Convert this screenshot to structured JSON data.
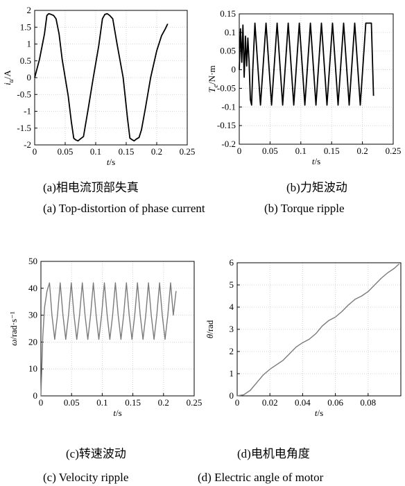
{
  "captions": {
    "a_zh": "(a)相电流顶部失真",
    "b_zh": "(b)力矩波动",
    "a_en": "(a) Top-distortion of phase current",
    "b_en": "(b) Torque ripple",
    "c_zh": "(c)转速波动",
    "d_zh": "(d)电机电角度",
    "c_en": "(c) Velocity ripple",
    "d_en": "(d) Electric angle of motor"
  },
  "chart_data": [
    {
      "id": "a",
      "type": "line",
      "title": "",
      "xlabel": "t/s",
      "ylabel": "i_u/A",
      "xlim": [
        0,
        0.25
      ],
      "ylim": [
        -2,
        2
      ],
      "xticks": [
        "0",
        "0.05",
        "0.1",
        "0.15",
        "0.2",
        "0.25"
      ],
      "yticks": [
        "2",
        "1.5",
        "1",
        "0.5",
        "0",
        "-0.5",
        "-1",
        "-1.5",
        "-2"
      ],
      "grid": true,
      "series": [
        {
          "color": "#000000",
          "x": [
            0,
            0.008,
            0.016,
            0.02,
            0.023,
            0.027,
            0.031,
            0.035,
            0.04,
            0.045,
            0.05,
            0.055,
            0.06,
            0.064,
            0.067,
            0.071,
            0.075,
            0.08,
            0.088,
            0.096,
            0.105,
            0.111,
            0.115,
            0.119,
            0.123,
            0.128,
            0.135,
            0.145,
            0.152,
            0.156,
            0.16,
            0.163,
            0.167,
            0.171,
            0.175,
            0.181,
            0.19,
            0.2,
            0.208,
            0.214,
            0.218
          ],
          "y": [
            0,
            0.55,
            1.3,
            1.85,
            1.9,
            1.88,
            1.85,
            1.75,
            1.3,
            0.55,
            0,
            -0.55,
            -1.3,
            -1.8,
            -1.85,
            -1.88,
            -1.82,
            -1.75,
            -0.9,
            0,
            0.95,
            1.75,
            1.88,
            1.9,
            1.85,
            1.75,
            1.0,
            0,
            -1.2,
            -1.8,
            -1.85,
            -1.88,
            -1.82,
            -1.78,
            -1.55,
            -0.95,
            0,
            0.8,
            1.25,
            1.45,
            1.6
          ]
        }
      ]
    },
    {
      "id": "b",
      "type": "line",
      "title": "",
      "xlabel": "t/s",
      "ylabel": "T_e/N·m",
      "xlim": [
        0,
        0.25
      ],
      "ylim": [
        -0.2,
        0.15
      ],
      "xticks": [
        "0",
        "0.05",
        "0.1",
        "0.15",
        "0.2",
        "0.25"
      ],
      "yticks": [
        "0.15",
        "0.1",
        "0.05",
        "0",
        "-0.05",
        "-0.1",
        "-0.15",
        "-0.2"
      ],
      "grid": true,
      "series": [
        {
          "color": "#000000",
          "x": [
            0,
            0.002,
            0.004,
            0.006,
            0.008,
            0.01,
            0.012,
            0.014,
            0.016,
            0.018,
            0.02,
            0.022,
            0.0255,
            0.0345,
            0.0435,
            0.0525,
            0.0615,
            0.0705,
            0.0795,
            0.0885,
            0.0975,
            0.1065,
            0.1155,
            0.1245,
            0.1335,
            0.1425,
            0.1515,
            0.1605,
            0.1695,
            0.1785,
            0.1875,
            0.1965,
            0.2055,
            0.2145,
            0.218
          ],
          "y": [
            0,
            0.11,
            0.02,
            0.12,
            -0.02,
            0.09,
            0.01,
            0.085,
            0.02,
            -0.08,
            -0.095,
            0.0,
            0.125,
            -0.095,
            0.125,
            -0.095,
            0.125,
            -0.095,
            0.125,
            -0.095,
            0.125,
            -0.095,
            0.125,
            -0.095,
            0.125,
            -0.095,
            0.125,
            -0.095,
            0.125,
            -0.095,
            0.125,
            -0.095,
            0.125,
            0.125,
            -0.07
          ]
        }
      ]
    },
    {
      "id": "c",
      "type": "line",
      "title": "",
      "xlabel": "t/s",
      "ylabel": "ω/rad·s⁻¹",
      "xlim": [
        0,
        0.25
      ],
      "ylim": [
        0,
        50
      ],
      "xticks": [
        "0",
        "0.05",
        "0.1",
        "0.15",
        "0.2",
        "0.25"
      ],
      "yticks": [
        "50",
        "40",
        "30",
        "20",
        "10",
        "0"
      ],
      "grid": true,
      "series": [
        {
          "color": "#7a7a7a",
          "x": [
            0,
            0.003,
            0.006,
            0.01,
            0.014,
            0.018,
            0.0225,
            0.027,
            0.0315,
            0.036,
            0.0405,
            0.045,
            0.0495,
            0.054,
            0.0585,
            0.063,
            0.0675,
            0.072,
            0.0765,
            0.081,
            0.0855,
            0.09,
            0.0945,
            0.099,
            0.1035,
            0.108,
            0.1125,
            0.117,
            0.1215,
            0.126,
            0.1305,
            0.135,
            0.1395,
            0.144,
            0.1485,
            0.153,
            0.1575,
            0.162,
            0.1665,
            0.171,
            0.1755,
            0.18,
            0.1845,
            0.189,
            0.1935,
            0.198,
            0.2025,
            0.207,
            0.2115,
            0.216,
            0.2205
          ],
          "y": [
            0,
            22,
            33,
            39,
            42,
            30,
            21,
            30,
            42,
            30,
            21,
            30,
            42,
            30,
            21,
            30,
            42,
            30,
            21,
            30,
            42,
            30,
            21,
            30,
            42,
            30,
            21,
            30,
            42,
            30,
            21,
            30,
            42,
            30,
            21,
            30,
            42,
            30,
            21,
            30,
            42,
            30,
            21,
            30,
            42,
            30,
            21,
            30,
            42,
            30,
            39
          ]
        }
      ]
    },
    {
      "id": "d",
      "type": "line",
      "title": "",
      "xlabel": "t/s",
      "ylabel": "θ/rad",
      "xlim": [
        0,
        0.1
      ],
      "ylim": [
        0,
        6
      ],
      "xticks": [
        "0",
        "0.02",
        "0.04",
        "0.06",
        "0.08"
      ],
      "yticks": [
        "6",
        "5",
        "4",
        "3",
        "2",
        "1",
        "0"
      ],
      "grid": true,
      "series": [
        {
          "color": "#7a7a7a",
          "x": [
            0,
            0.004,
            0.008,
            0.012,
            0.016,
            0.02,
            0.024,
            0.028,
            0.032,
            0.036,
            0.04,
            0.044,
            0.048,
            0.052,
            0.056,
            0.06,
            0.064,
            0.068,
            0.072,
            0.076,
            0.08,
            0.084,
            0.088,
            0.092,
            0.096,
            0.099
          ],
          "y": [
            0,
            0.05,
            0.25,
            0.6,
            0.95,
            1.2,
            1.4,
            1.6,
            1.9,
            2.2,
            2.4,
            2.55,
            2.8,
            3.15,
            3.4,
            3.55,
            3.8,
            4.1,
            4.35,
            4.5,
            4.7,
            5.0,
            5.3,
            5.55,
            5.75,
            5.95
          ]
        }
      ]
    }
  ]
}
